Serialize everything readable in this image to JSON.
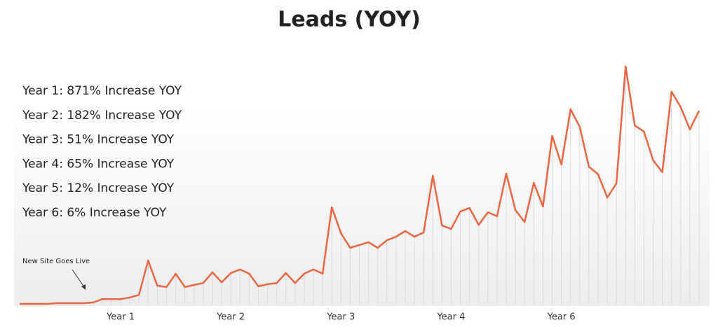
{
  "chart_data": {
    "type": "line",
    "title": "Leads (YOY)",
    "notes": [
      "Year 1:  871% Increase YOY",
      "Year 2:  182% Increase YOY",
      "Year 3:  51% Increase YOY",
      "Year 4:  65% Increase YOY",
      "Year 5:  12% Increase YOY",
      "Year 6:  6% Increase YOY"
    ],
    "annotation": "New Site Goes Live",
    "categories": [
      null,
      null,
      null,
      null,
      null,
      null,
      null,
      null,
      null,
      null,
      null,
      "Year 1",
      null,
      null,
      null,
      null,
      null,
      null,
      null,
      null,
      null,
      null,
      null,
      "Year 2",
      null,
      null,
      null,
      null,
      null,
      null,
      null,
      null,
      null,
      null,
      null,
      "Year 3",
      null,
      null,
      null,
      null,
      null,
      null,
      null,
      null,
      null,
      null,
      null,
      "Year 4",
      null,
      null,
      null,
      null,
      null,
      null,
      null,
      null,
      null,
      null,
      null,
      "Year 6",
      null,
      null,
      null,
      null,
      null,
      null,
      null,
      null,
      null,
      null,
      null,
      null,
      null,
      null,
      null
    ],
    "series": [
      {
        "name": "Leads",
        "color": "#ee6440",
        "values": [
          0,
          0,
          0,
          0,
          0.3,
          0.3,
          0.3,
          0.3,
          0.6,
          2,
          2,
          2,
          2.7,
          3.8,
          18.3,
          7.7,
          7.1,
          12.7,
          7.1,
          8,
          8.8,
          13.3,
          9.1,
          13,
          14.5,
          12.7,
          7.4,
          8.3,
          8.8,
          13,
          8.8,
          12.7,
          14.5,
          12.7,
          40.7,
          29.8,
          23.6,
          24.8,
          26,
          23.6,
          26.8,
          28.3,
          30.7,
          28.3,
          30.1,
          54,
          33,
          31.6,
          38.9,
          40.4,
          33.3,
          38.6,
          36.9,
          54.9,
          39.5,
          34.5,
          51,
          41,
          70.8,
          58.7,
          82,
          74.6,
          57.8,
          54.6,
          44.8,
          50.7,
          100,
          75.2,
          72.6,
          60.5,
          55.5,
          89.4,
          82.9,
          73.5,
          81.4
        ]
      }
    ],
    "ylim": [
      0,
      100
    ]
  }
}
